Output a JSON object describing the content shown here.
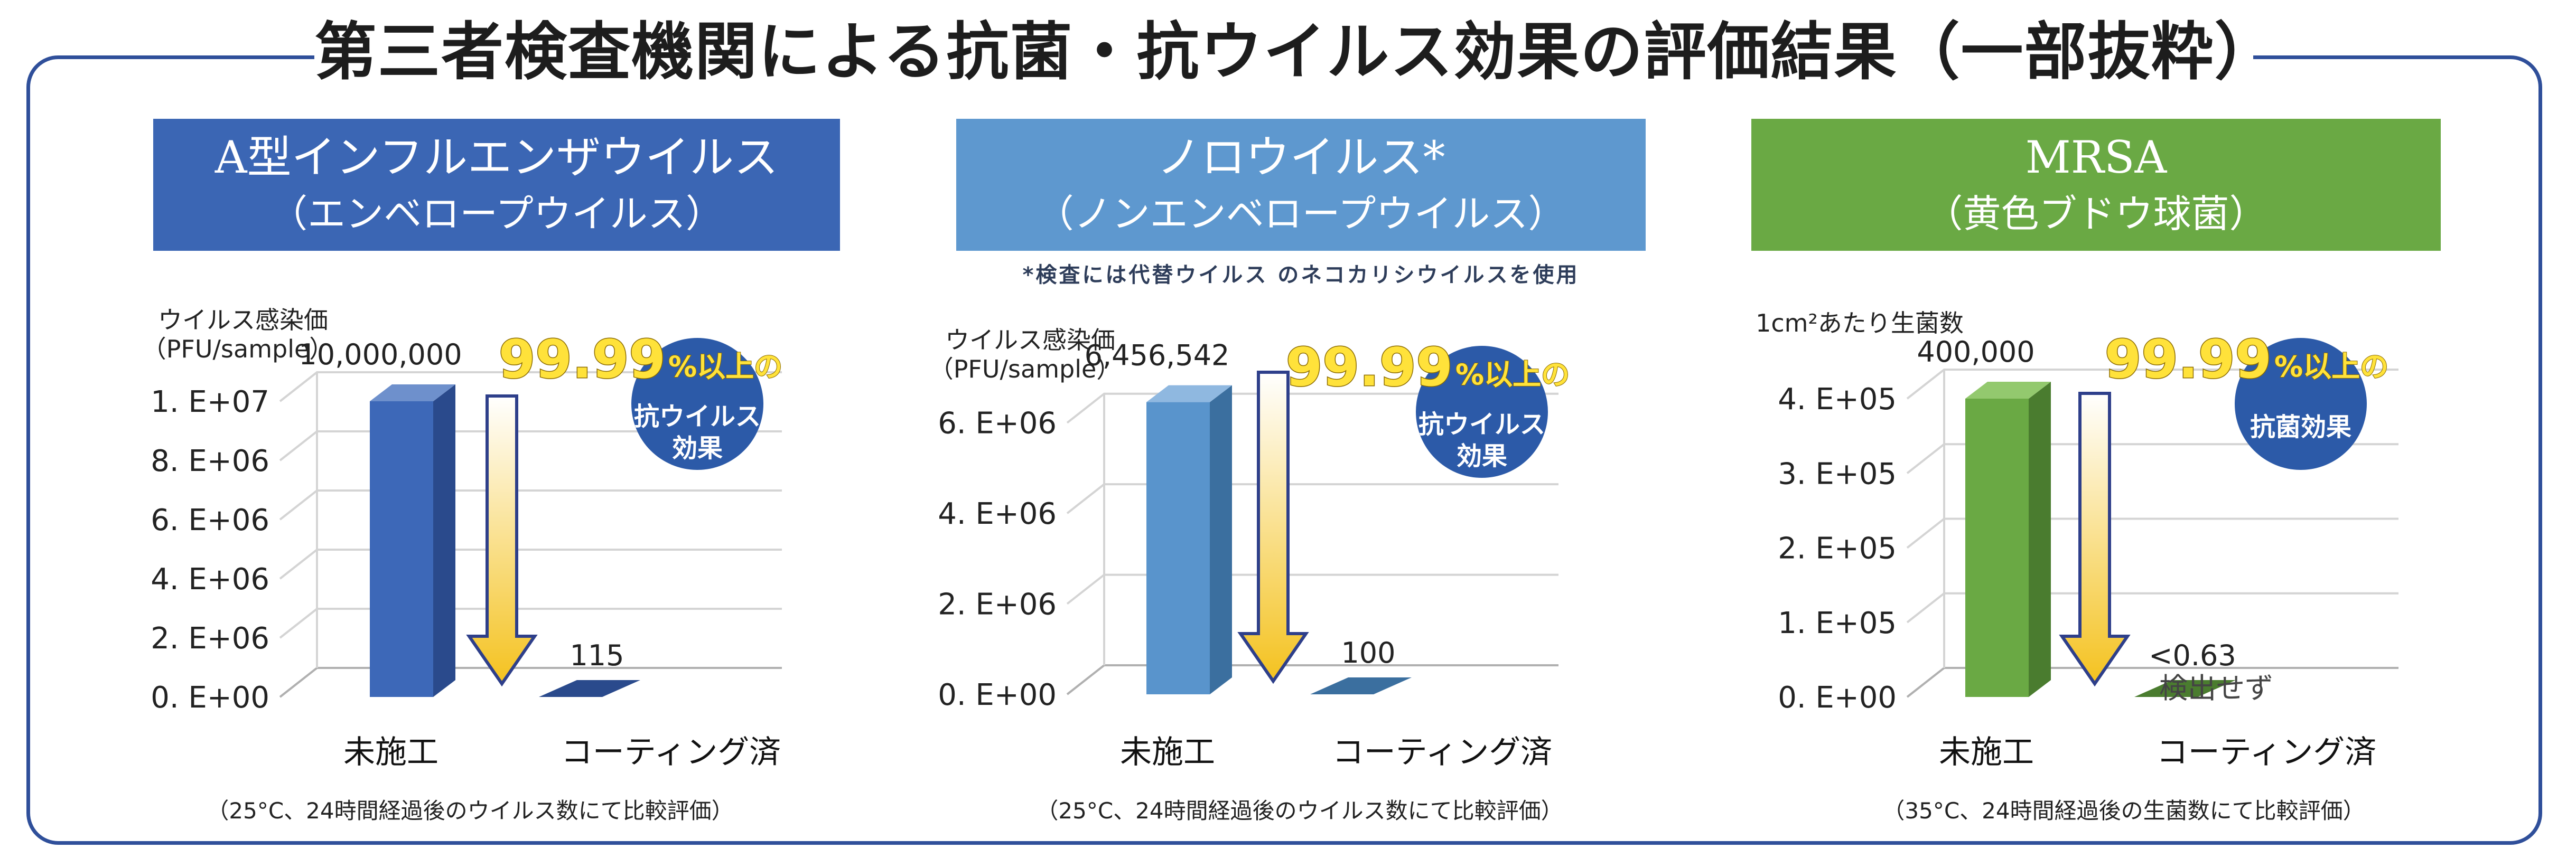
{
  "title": "第三者検査機関による抗菌・抗ウイルス効果の評価結果（一部抜粋）",
  "colors": {
    "frame": "#2f4f9a",
    "arrow": "#f4c21f",
    "arrow_outline": "#2e3f8a",
    "circle": "#2c5aa8",
    "callout_text": "#ffe23a"
  },
  "panels": [
    {
      "header_line1": "A型インフルエンザウイルス",
      "header_line2": "（エンベロープウイルス）",
      "header_color": "#3b66b4",
      "note": "",
      "callout": {
        "number": "99.99",
        "suffix": "%以上の",
        "circle_line1": "抗ウイルス",
        "circle_line2": "効果"
      },
      "footnote": "（25°C、24時間経過後のウイルス数にて比較評価）"
    },
    {
      "header_line1": "ノロウイルス*",
      "header_line2": "（ノンエンベロープウイルス）",
      "header_color": "#5e98cf",
      "note": "*検査には代替ウイルス のネコカリシウイルスを使用",
      "callout": {
        "number": "99.99",
        "suffix": "%以上の",
        "circle_line1": "抗ウイルス",
        "circle_line2": "効果"
      },
      "footnote": "（25°C、24時間経過後のウイルス数にて比較評価）"
    },
    {
      "header_line1": "MRSA",
      "header_line2": "（黄色ブドウ球菌）",
      "header_color": "#6aa944",
      "note": "",
      "callout": {
        "number": "99.99",
        "suffix": "%以上の",
        "circle_line1": "抗菌効果",
        "circle_line2": ""
      },
      "footnote": "（35°C、24時間経過後の生菌数にて比較評価）"
    }
  ],
  "chart_data": [
    {
      "type": "bar",
      "ylabel": "ウイルス感染価",
      "ylabel2": "（PFU/sample）",
      "categories": [
        "未施工",
        "コーティング済"
      ],
      "values": [
        10000000,
        115
      ],
      "data_labels": [
        "10,000,000",
        "115"
      ],
      "ylim": [
        0,
        10000000
      ],
      "yticks": [
        0,
        2000000,
        4000000,
        6000000,
        8000000,
        10000000
      ],
      "ytick_labels": [
        "0. E+00",
        "2. E+06",
        "4. E+06",
        "6. E+06",
        "8. E+06",
        "1. E+07"
      ],
      "colors": {
        "front": "#3d68b8",
        "side": "#2a4a8c",
        "top": "#6e90cc"
      },
      "grid": true
    },
    {
      "type": "bar",
      "ylabel": "ウイルス感染価",
      "ylabel2": "（PFU/sample）",
      "categories": [
        "未施工",
        "コーティング済"
      ],
      "values": [
        6456542,
        100
      ],
      "data_labels": [
        "6,456,542",
        "100"
      ],
      "ylim": [
        0,
        7000000
      ],
      "yticks": [
        0,
        2000000,
        4000000,
        6000000
      ],
      "ytick_labels": [
        "0. E+00",
        "2. E+06",
        "4. E+06",
        "6. E+06"
      ],
      "colors": {
        "front": "#5994cc",
        "side": "#3b6f9f",
        "top": "#8fb8e0"
      },
      "grid": true
    },
    {
      "type": "bar",
      "ylabel": "1cm²あたり生菌数",
      "ylabel2": "",
      "categories": [
        "未施工",
        "コーティング済"
      ],
      "values": [
        400000,
        0.63
      ],
      "data_labels": [
        "400,000",
        "<0.63"
      ],
      "data_label_extra": "検出せず",
      "ylim": [
        0,
        400000
      ],
      "yticks": [
        0,
        100000,
        200000,
        300000,
        400000
      ],
      "ytick_labels": [
        "0. E+00",
        "1. E+05",
        "2. E+05",
        "3. E+05",
        "4. E+05"
      ],
      "colors": {
        "front": "#6aa944",
        "side": "#4a7c2f",
        "top": "#93c96e"
      },
      "grid": true
    }
  ]
}
